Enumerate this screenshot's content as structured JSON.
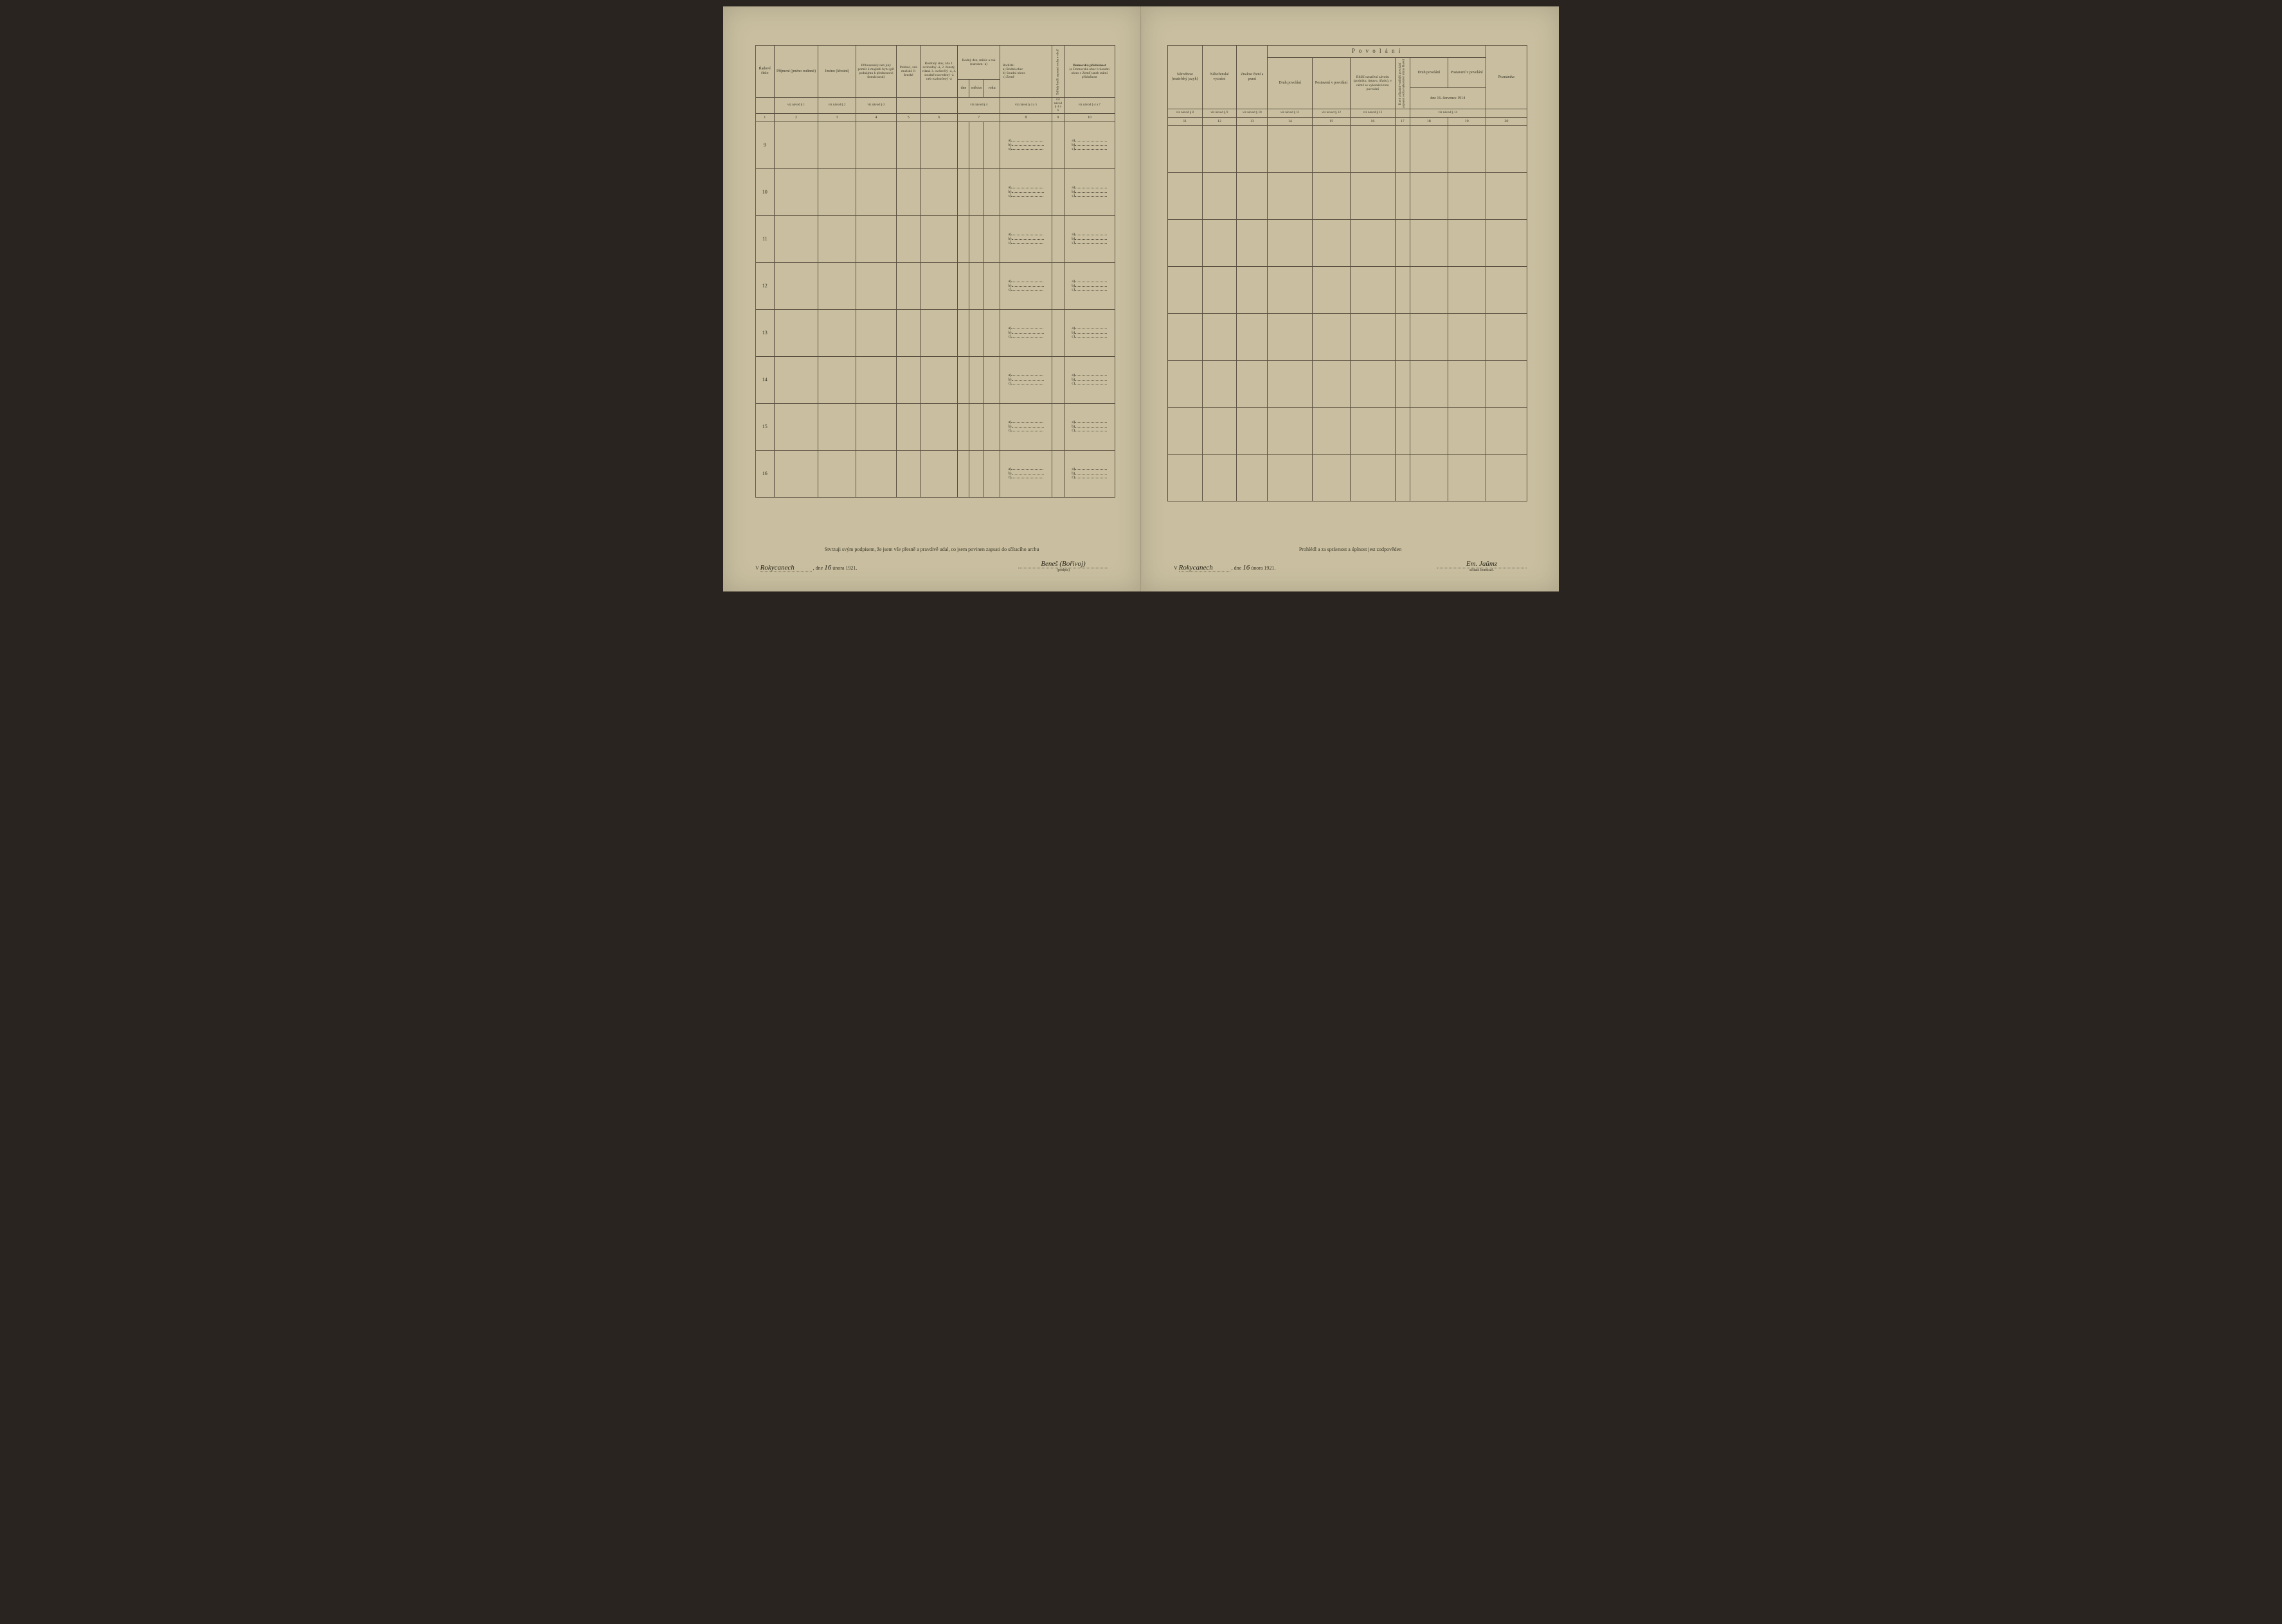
{
  "left": {
    "headers": {
      "radove": "Řadové číslo",
      "prijmeni": "Příjmení (jméno rodinné)",
      "jmeno": "Jméno (křestní)",
      "pribuzensky": "Příbuzenský neb jiný poměr k majiteli bytu (při podnájmu k přednostovi domácnosti)",
      "pohlavi": "Pohlaví, zda mužské či ženské",
      "rodinny": "Rodinný stav, zda 1. svobodný -á, 2. ženatý, vdaná 3. ovdovělý -á, 4. soudně rozvedený -á neb rozloučený -á",
      "rodny_den": "Rodný den, měsíc a rok (narozen -a)",
      "dne": "dne",
      "mesice": "měsíce",
      "roku": "roku",
      "rodiste": "Rodiště:",
      "rodiste_a": "a) Rodná obec",
      "rodiste_b": "b) Soudní okres",
      "rodiste_c": "c) Země",
      "odkdy": "Od kdy bydlí zapsaná osoba v obci?",
      "domovska": "Domovská příslušnost",
      "domovska_sub": "(a Domovská obec b Soudní okres c Země) aneb státní příslušnost"
    },
    "navod": {
      "n1": "viz návod § 1",
      "n2": "viz návod § 2",
      "n3": "viz návod § 3",
      "n4": "viz návod § 4",
      "n425": "viz návod § 4 a 5",
      "n46": "viz návod § 4 a 6",
      "n47": "viz návod § 4 a 7"
    },
    "colnums": [
      "1",
      "2",
      "3",
      "4",
      "5",
      "6",
      "7",
      "8",
      "9",
      "10"
    ],
    "rows": [
      "9",
      "10",
      "11",
      "12",
      "13",
      "14",
      "15",
      "16"
    ],
    "sublabels": {
      "a": "a)",
      "b": "b)",
      "c": "c)"
    },
    "footer": {
      "statement": "Stvrzuji svým podpisem, že jsem vše přesně a pravdivě udal, co jsem povinen zapsati do sčítacího archu",
      "v": "V",
      "place": "Rokycanech",
      "dne": ", dne",
      "date_day": "16",
      "date_rest": "února 1921.",
      "signature": "Beneš (Bořivoj)",
      "sig_label": "(podpis)"
    }
  },
  "right": {
    "headers": {
      "narodnost": "Národnost (mateřský jazyk)",
      "nabozenske": "Náboženské vyznání",
      "znalost": "Znalost čtení a psaní",
      "povolani": "P o v o l á n í",
      "druh": "Druh povolání",
      "postaveni": "Postavení v povolání",
      "blizsi": "Bližší označení závodu (podniku, ústavu, úřadu), v němž se vykonává toto povolání",
      "vedlejsi": "Které případné vedlejší povolání zapsaná osoba vykonává mimo hlavní",
      "druh2": "Druh povolání",
      "postaveni2": "Postavení v povolání",
      "dne1914": "dne 16. července 1914",
      "poznamka": "Poznámka"
    },
    "navod": {
      "n8": "viz návod § 8",
      "n9": "viz návod § 9",
      "n10": "viz návod § 10",
      "n11": "viz návod § 11",
      "n12": "viz návod § 12",
      "n13": "viz návod § 13",
      "n14": "viz návod § 14"
    },
    "colnums": [
      "11",
      "12",
      "13",
      "14",
      "15",
      "16",
      "17",
      "18",
      "19",
      "20"
    ],
    "footer": {
      "statement": "Prohlédl a za správnost a úplnost jest zodpověden",
      "v": "V",
      "place": "Rokycanech",
      "dne": ", dne",
      "date_day": "16",
      "date_rest": "února 1921.",
      "signature": "Em. Jaŭmz",
      "sig_label": "sčítací komisař."
    }
  }
}
